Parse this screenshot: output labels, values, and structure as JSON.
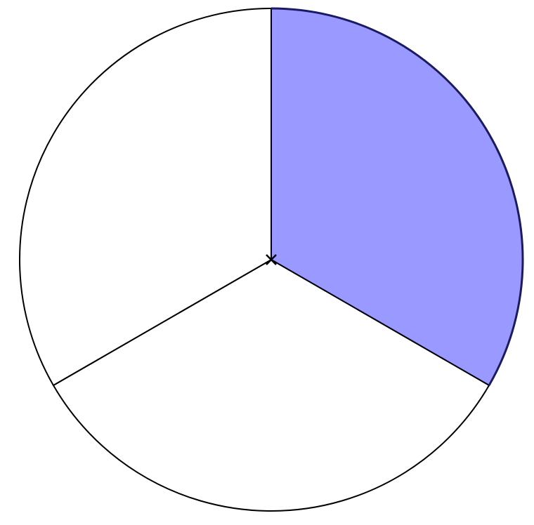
{
  "diagram": {
    "type": "fraction-circle",
    "total_parts": 3,
    "shaded_parts": 1,
    "shaded_fraction": 0.3333,
    "colors": {
      "shaded_fill": "#9999ff",
      "shaded_stroke": "#1a1a66",
      "unshaded_fill": "#ffffff",
      "outline": "#000000"
    }
  }
}
